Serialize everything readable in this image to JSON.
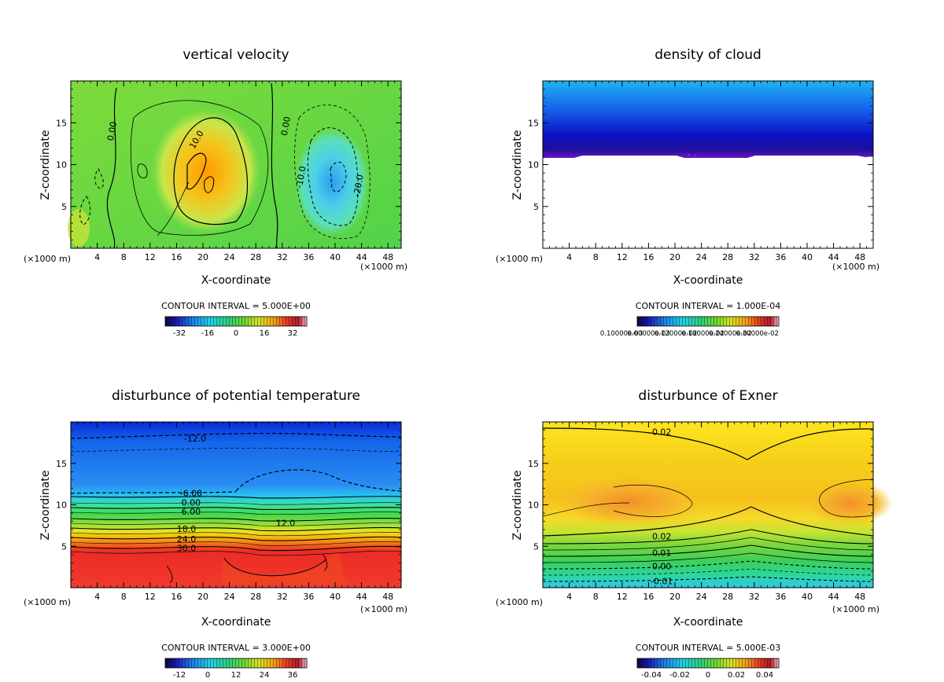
{
  "chart_data": [
    {
      "type": "heatmap",
      "title": "vertical velocity",
      "xlabel": "X-coordinate",
      "ylabel": "Z-coordinate",
      "x_unit_left": "(×1000 m)",
      "x_unit_right": "(×1000 m)",
      "xlim": [
        0,
        50
      ],
      "ylim": [
        0,
        20
      ],
      "xticks": [
        4,
        8,
        12,
        16,
        20,
        24,
        28,
        32,
        36,
        40,
        44,
        48
      ],
      "yticks": [
        5,
        10,
        15
      ],
      "contour_labels": [
        {
          "text": "0.00",
          "x": 6.2,
          "z": 14
        },
        {
          "text": "10.0",
          "x": 19,
          "z": 13
        },
        {
          "text": "0.00",
          "x": 32.5,
          "z": 14.6
        },
        {
          "text": "-10.0",
          "x": 34.8,
          "z": 8.5
        },
        {
          "text": "-20.0",
          "x": 43.5,
          "z": 7.5
        }
      ],
      "contour_interval": "CONTOUR INTERVAL = 5.000E+00",
      "colorbar": {
        "ticks": [
          "-32",
          "-16",
          "0",
          "16",
          "32"
        ]
      }
    },
    {
      "type": "heatmap",
      "title": "density of cloud",
      "xlabel": "X-coordinate",
      "ylabel": "Z-coordinate",
      "x_unit_left": "(×1000 m)",
      "x_unit_right": "(×1000 m)",
      "xlim": [
        0,
        50
      ],
      "ylim": [
        0,
        20
      ],
      "xticks": [
        4,
        8,
        12,
        16,
        20,
        24,
        28,
        32,
        36,
        40,
        44,
        48
      ],
      "yticks": [
        5,
        10,
        15
      ],
      "contour_labels": [],
      "contour_interval": "CONTOUR INTERVAL = 1.000E-04",
      "colorbar": {
        "ticks": [
          "0.10000e-03",
          "0.60000e-03",
          "0.12000e-02",
          "0.18000e-02",
          "0.24000e-02",
          "0.30000e-02"
        ]
      }
    },
    {
      "type": "heatmap",
      "title": "disturbunce of potential temperature",
      "xlabel": "X-coordinate",
      "ylabel": "Z-coordinate",
      "x_unit_left": "(×1000 m)",
      "x_unit_right": "(×1000 m)",
      "xlim": [
        0,
        50
      ],
      "ylim": [
        0,
        20
      ],
      "xticks": [
        4,
        8,
        12,
        16,
        20,
        24,
        28,
        32,
        36,
        40,
        44,
        48
      ],
      "yticks": [
        5,
        10,
        15
      ],
      "contour_labels": [
        {
          "text": "-12.0",
          "x": 18.8,
          "z": 18
        },
        {
          "text": "-6.00",
          "x": 18.2,
          "z": 11.4
        },
        {
          "text": "0.00",
          "x": 18.2,
          "z": 10.3
        },
        {
          "text": "6.00",
          "x": 18.2,
          "z": 9.2
        },
        {
          "text": "12.0",
          "x": 32.5,
          "z": 7.8
        },
        {
          "text": "18.0",
          "x": 17.5,
          "z": 7.1
        },
        {
          "text": "24.0",
          "x": 17.5,
          "z": 5.9
        },
        {
          "text": "30.0",
          "x": 17.5,
          "z": 4.8
        }
      ],
      "contour_interval": "CONTOUR INTERVAL = 3.000E+00",
      "colorbar": {
        "ticks": [
          "-12",
          "0",
          "12",
          "24",
          "36"
        ]
      }
    },
    {
      "type": "heatmap",
      "title": "disturbunce of Exner",
      "xlabel": "X-coordinate",
      "ylabel": "Z-coordinate",
      "x_unit_left": "(×1000 m)",
      "x_unit_right": "(×1000 m)",
      "xlim": [
        0,
        50
      ],
      "ylim": [
        0,
        20
      ],
      "xticks": [
        4,
        8,
        12,
        16,
        20,
        24,
        28,
        32,
        36,
        40,
        44,
        48
      ],
      "yticks": [
        5,
        10,
        15
      ],
      "contour_labels": [
        {
          "text": "0.02",
          "x": 18,
          "z": 18.8
        },
        {
          "text": "0.02",
          "x": 18,
          "z": 6.2
        },
        {
          "text": "0.01",
          "x": 18,
          "z": 4.2
        },
        {
          "text": "0.00",
          "x": 18,
          "z": 2.6
        },
        {
          "text": "-0.01",
          "x": 18,
          "z": 0.8
        }
      ],
      "contour_interval": "CONTOUR INTERVAL = 5.000E-03",
      "colorbar": {
        "ticks": [
          "-0.04",
          "-0.02",
          "0",
          "0.02",
          "0.04"
        ]
      }
    }
  ]
}
